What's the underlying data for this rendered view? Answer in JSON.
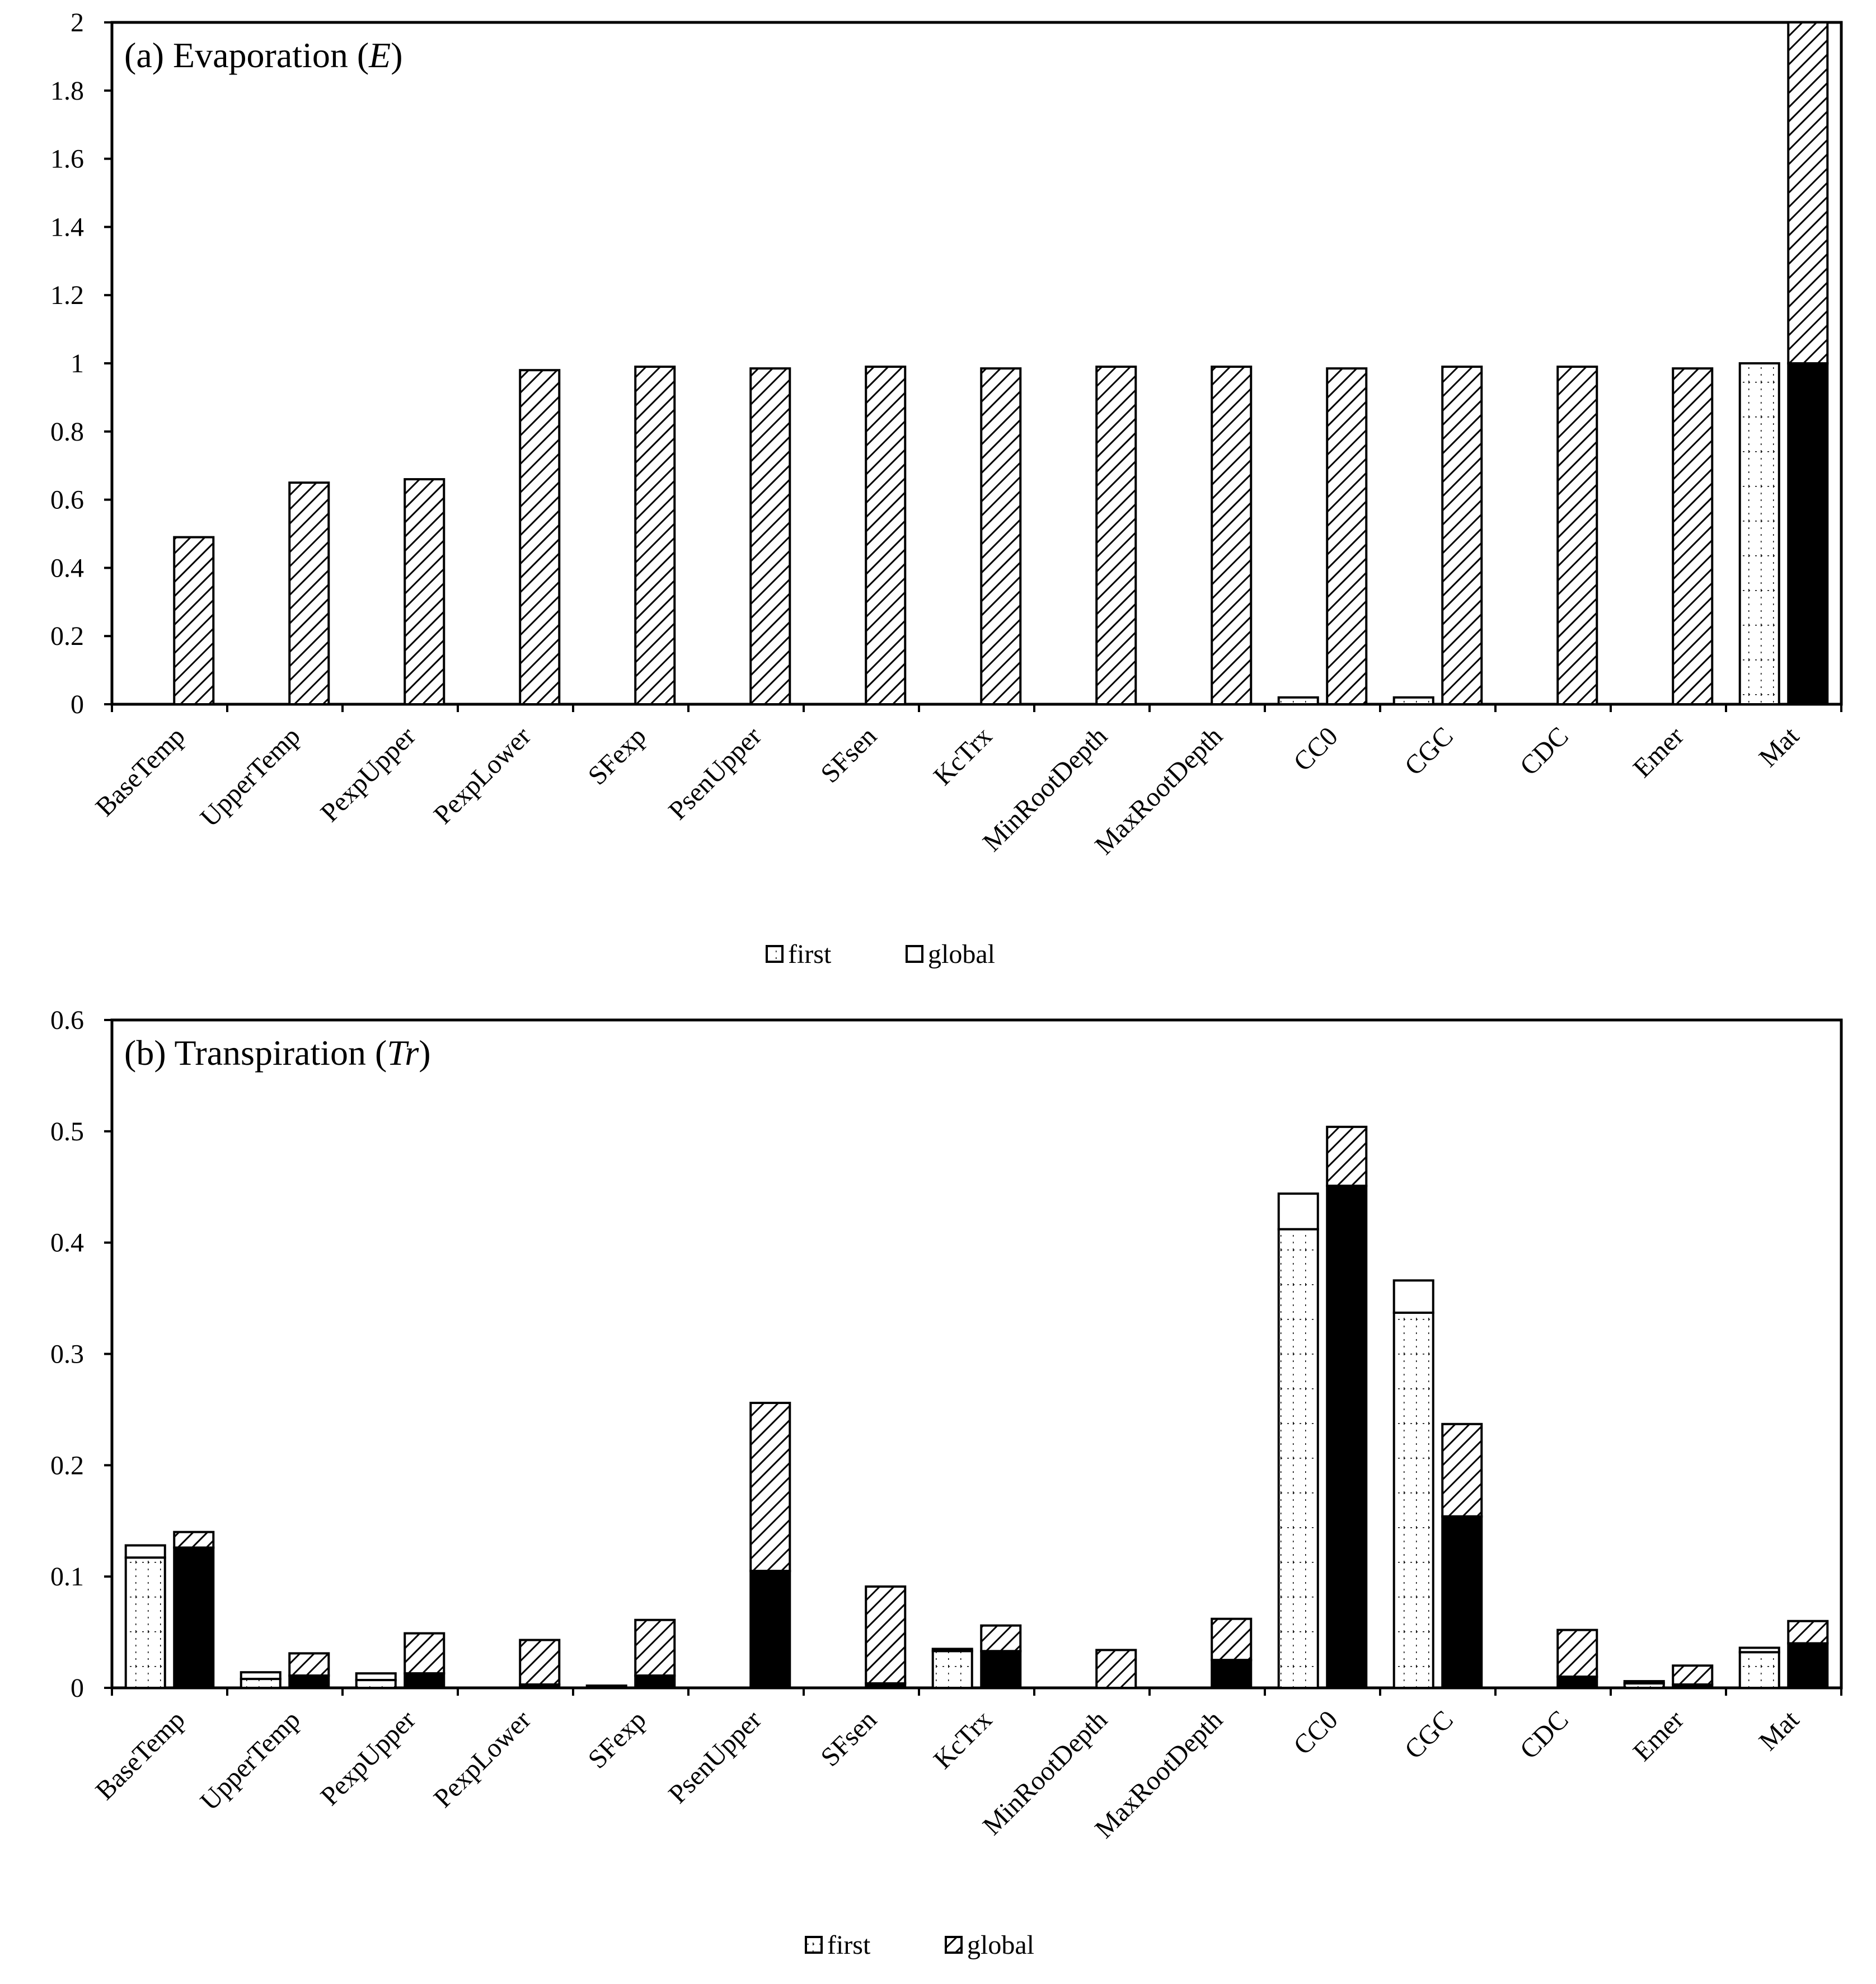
{
  "colors": {
    "frame": "#000000",
    "first_fill": "#ffffff",
    "first_dot": "#000000",
    "global_fill": "#ffffff",
    "global_hatch": "#000000",
    "solid": "#000000"
  },
  "chart_data": [
    {
      "type": "bar",
      "panel_id": "a",
      "title_prefix": "(a) Evaporation (",
      "title_var": "E",
      "title_suffix": ")",
      "ylim": [
        0,
        2
      ],
      "yticks": [
        "0",
        "0.2",
        "0.4",
        "0.6",
        "0.8",
        "1",
        "1.2",
        "1.4",
        "1.6",
        "1.8",
        "2"
      ],
      "categories": [
        "BaseTemp",
        "UpperTemp",
        "PexpUpper",
        "PexpLower",
        "SFexp",
        "PsenUpper",
        "SFsen",
        "KcTrx",
        "MinRootDepth",
        "MaxRootDepth",
        "CC0",
        "CGC",
        "CDC",
        "Emer",
        "Mat"
      ],
      "series": [
        {
          "name": "first",
          "lower": [
            0,
            0,
            0,
            0,
            0,
            0,
            0,
            0,
            0,
            0,
            0.02,
            0.02,
            0,
            0,
            1.0
          ],
          "total": [
            0,
            0,
            0,
            0,
            0,
            0,
            0,
            0,
            0,
            0,
            0.02,
            0.02,
            0,
            0,
            1.0
          ]
        },
        {
          "name": "global",
          "lower": [
            0,
            0,
            0,
            0,
            0,
            0,
            0,
            0,
            0,
            0,
            0,
            0,
            0,
            0,
            1.0
          ],
          "total": [
            0.49,
            0.65,
            0.66,
            0.98,
            0.99,
            0.985,
            0.99,
            0.985,
            0.99,
            0.99,
            0.985,
            0.99,
            0.99,
            0.985,
            2.0
          ]
        }
      ],
      "legend": [
        "first",
        "global"
      ]
    },
    {
      "type": "bar",
      "panel_id": "b",
      "title_prefix": "(b) Transpiration (",
      "title_var": "Tr",
      "title_suffix": ")",
      "ylim": [
        0,
        0.6
      ],
      "yticks": [
        "0",
        "0.1",
        "0.2",
        "0.3",
        "0.4",
        "0.5",
        "0.6"
      ],
      "categories": [
        "BaseTemp",
        "UpperTemp",
        "PexpUpper",
        "PexpLower",
        "SFexp",
        "PsenUpper",
        "SFsen",
        "KcTrx",
        "MinRootDepth",
        "MaxRootDepth",
        "CC0",
        "CGC",
        "CDC",
        "Emer",
        "Mat"
      ],
      "series": [
        {
          "name": "first",
          "lower": [
            0.117,
            0.008,
            0.007,
            0,
            0.002,
            0,
            0,
            0.033,
            0,
            0,
            0.412,
            0.337,
            0,
            0.004,
            0.032
          ],
          "total": [
            0.128,
            0.014,
            0.013,
            0,
            0.002,
            0,
            0,
            0.035,
            0,
            0,
            0.444,
            0.366,
            0,
            0.006,
            0.036
          ]
        },
        {
          "name": "global",
          "lower": [
            0.126,
            0.011,
            0.013,
            0.003,
            0.011,
            0.105,
            0.004,
            0.033,
            0,
            0.025,
            0.451,
            0.154,
            0.01,
            0.003,
            0.04
          ],
          "total": [
            0.14,
            0.031,
            0.049,
            0.043,
            0.061,
            0.256,
            0.091,
            0.056,
            0.034,
            0.062,
            0.504,
            0.237,
            0.052,
            0.02,
            0.06
          ]
        }
      ],
      "legend": [
        "first",
        "global"
      ]
    }
  ]
}
